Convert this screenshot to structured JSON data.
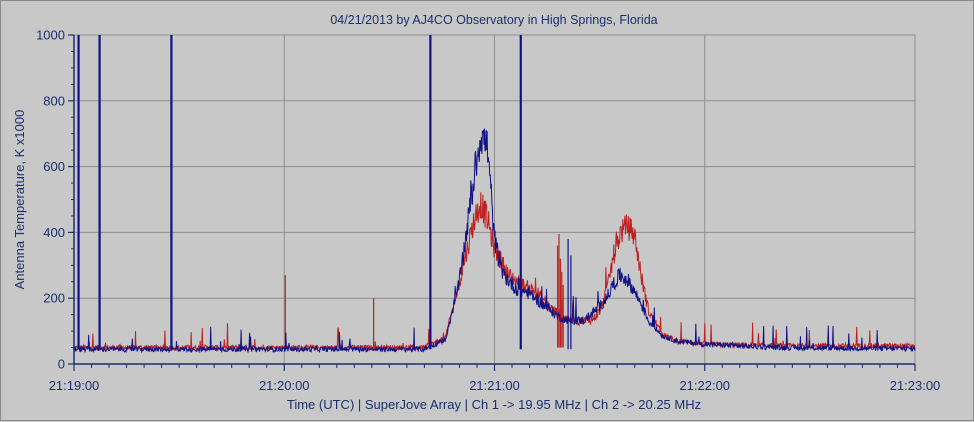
{
  "chart_data": {
    "type": "line",
    "title": "04/21/2013  by  AJ4CO Observatory  in  High Springs, Florida",
    "xlabel": "Time (UTC)  |  SuperJove Array  |  Ch 1 -> 19.95 MHz  |  Ch 2 -> 20.25 MHz",
    "ylabel": "Antenna Temperature, K x1000",
    "xlim": [
      0,
      240
    ],
    "ylim": [
      0,
      1000
    ],
    "x_tick_values": [
      0,
      60,
      120,
      180,
      240
    ],
    "x_tick_labels": [
      "21:19:00",
      "21:20:00",
      "21:21:00",
      "21:22:00",
      "21:23:00"
    ],
    "y_tick_values": [
      0,
      200,
      400,
      600,
      800,
      1000
    ],
    "y_tick_labels": [
      "0",
      "200",
      "400",
      "600",
      "800",
      "1000"
    ],
    "grid": true,
    "colors": {
      "background": "#c8c8c8",
      "plot_bg": "#c8c8c8",
      "grid": "#8e8e8e",
      "axis": "#1a2f6e",
      "text": "#1a2f6e",
      "ch1": "#101088",
      "ch2": "#c02020"
    },
    "series": [
      {
        "name": "Ch 1 -> 19.95 MHz",
        "color": "#101088",
        "baseline": 45,
        "x": [
          0,
          100,
          106,
          110,
          114,
          116,
          118,
          119,
          120,
          122,
          126,
          130,
          134,
          138,
          142,
          146,
          150,
          152,
          154,
          156,
          158,
          160,
          162,
          164,
          168,
          172,
          180,
          190,
          200,
          220,
          240
        ],
        "values": [
          45,
          45,
          75,
          250,
          550,
          700,
          660,
          520,
          380,
          280,
          230,
          215,
          180,
          145,
          130,
          135,
          175,
          200,
          245,
          270,
          255,
          220,
          180,
          130,
          85,
          70,
          60,
          55,
          50,
          48,
          47
        ],
        "spikes": [
          {
            "x": 1.3,
            "value": 1000
          },
          {
            "x": 7.3,
            "value": 1000
          },
          {
            "x": 27.8,
            "value": 1000
          },
          {
            "x": 101.7,
            "value": 1000
          },
          {
            "x": 127.5,
            "value": 1000
          },
          {
            "x": 141.0,
            "value": 380
          },
          {
            "x": 141.8,
            "value": 330
          },
          {
            "x": 141.8,
            "value": 330
          },
          {
            "x": 141.8,
            "value": 330
          },
          {
            "x": 141.8,
            "value": 330
          },
          {
            "x": 141.8,
            "value": 330
          },
          {
            "x": 141.8,
            "value": 330
          },
          {
            "x": 141.8,
            "value": 330
          },
          {
            "x": 141.8,
            "value": 330
          },
          {
            "x": 141.8,
            "value": 330
          },
          {
            "x": 141.8,
            "value": 330
          },
          {
            "x": 141.8,
            "value": 330
          },
          {
            "x": 141.8,
            "value": 330
          },
          {
            "x": 141.8,
            "value": 330
          },
          {
            "x": 141.8,
            "value": 330
          },
          {
            "x": 141.8,
            "value": 330
          },
          {
            "x": 141.8,
            "value": 330
          },
          {
            "x": 141.8,
            "value": 330
          },
          {
            "x": 141.8,
            "value": 330
          },
          {
            "x": 141.8,
            "value": 330
          },
          {
            "x": 141.8,
            "value": 330
          },
          {
            "x": 141.8,
            "value": 330
          },
          {
            "x": 141.8,
            "value": 330
          },
          {
            "x": 141.8,
            "value": 330
          },
          {
            "x": 141.8,
            "value": 330
          },
          {
            "x": 141.8,
            "value": 330
          },
          {
            "x": 141.8,
            "value": 330
          },
          {
            "x": 141.8,
            "value": 330
          },
          {
            "x": 141.8,
            "value": 330
          },
          {
            "x": 141.8,
            "value": 330
          },
          {
            "x": 141.8,
            "value": 330
          },
          {
            "x": 141.8,
            "value": 330
          },
          {
            "x": 141.8,
            "value": 330
          },
          {
            "x": 141.8,
            "value": 330
          },
          {
            "x": 141.8,
            "value": 330
          },
          {
            "x": 141.8,
            "value": 330
          },
          {
            "x": 141.8,
            "value": 330
          },
          {
            "x": 141.8,
            "value": 330
          },
          {
            "x": 141.8,
            "value": 330
          },
          {
            "x": 141.8,
            "value": 330
          },
          {
            "x": 141.8,
            "value": 330
          },
          {
            "x": 141.8,
            "value": 330
          },
          {
            "x": 141.8,
            "value": 330
          },
          {
            "x": 141.8,
            "value": 330
          },
          {
            "x": 141.8,
            "value": 330
          },
          {
            "x": 141.8,
            "value": 330
          },
          {
            "x": 141.8,
            "value": 330
          },
          {
            "x": 141.8,
            "value": 330
          },
          {
            "x": 141.8,
            "value": 330
          },
          {
            "x": 141.8,
            "value": 330
          },
          {
            "x": 141.8,
            "value": 330
          },
          {
            "x": 141.8,
            "value": 330
          },
          {
            "x": 141.8,
            "value": 330
          },
          {
            "x": 141.8,
            "value": 330
          },
          {
            "x": 141.8,
            "value": 330
          },
          {
            "x": 141.8,
            "value": 330
          },
          {
            "x": 141.8,
            "value": 330
          },
          {
            "x": 141.8,
            "value": 330
          },
          {
            "x": 141.8,
            "value": 330
          },
          {
            "x": 141.8,
            "value": 330
          },
          {
            "x": 141.8,
            "value": 330
          },
          {
            "x": 141.8,
            "value": 330
          },
          {
            "x": 141.8,
            "value": 330
          },
          {
            "x": 141.8,
            "value": 330
          },
          {
            "x": 141.8,
            "value": 330
          },
          {
            "x": 141.8,
            "value": 330
          },
          {
            "x": 141.8,
            "value": 330
          }
        ]
      },
      {
        "name": "Ch 2 -> 20.25 MHz",
        "color": "#c02020",
        "baseline": 50,
        "x": [
          0,
          100,
          106,
          110,
          114,
          116,
          118,
          120,
          124,
          128,
          132,
          136,
          140,
          144,
          148,
          150,
          152,
          154,
          156,
          158,
          160,
          162,
          164,
          168,
          172,
          180,
          200,
          220,
          240
        ],
        "values": [
          50,
          50,
          80,
          250,
          430,
          490,
          440,
          350,
          270,
          240,
          220,
          170,
          140,
          130,
          135,
          160,
          220,
          330,
          400,
          420,
          390,
          260,
          160,
          90,
          70,
          60,
          55,
          55,
          55
        ],
        "spikes": [
          {
            "x": 60.3,
            "value": 270
          },
          {
            "x": 85.5,
            "value": 200
          },
          {
            "x": 138.0,
            "value": 360
          },
          {
            "x": 138.4,
            "value": 395
          },
          {
            "x": 138.8,
            "value": 320
          },
          {
            "x": 139.2,
            "value": 280
          },
          {
            "x": 139.6,
            "value": 240
          },
          {
            "x": 139.6,
            "value": 240
          },
          {
            "x": 139.6,
            "value": 240
          },
          {
            "x": 139.6,
            "value": 240
          },
          {
            "x": 139.6,
            "value": 240
          },
          {
            "x": 139.6,
            "value": 240
          },
          {
            "x": 139.6,
            "value": 240
          },
          {
            "x": 139.6,
            "value": 240
          },
          {
            "x": 139.6,
            "value": 240
          },
          {
            "x": 139.6,
            "value": 240
          },
          {
            "x": 139.6,
            "value": 240
          },
          {
            "x": 139.6,
            "value": 240
          },
          {
            "x": 139.6,
            "value": 240
          },
          {
            "x": 139.6,
            "value": 240
          },
          {
            "x": 139.6,
            "value": 240
          },
          {
            "x": 139.6,
            "value": 240
          },
          {
            "x": 139.6,
            "value": 240
          },
          {
            "x": 139.6,
            "value": 240
          },
          {
            "x": 139.6,
            "value": 240
          },
          {
            "x": 139.6,
            "value": 240
          },
          {
            "x": 139.6,
            "value": 240
          },
          {
            "x": 139.6,
            "value": 240
          },
          {
            "x": 139.6,
            "value": 240
          },
          {
            "x": 139.6,
            "value": 240
          },
          {
            "x": 139.6,
            "value": 240
          },
          {
            "x": 139.6,
            "value": 240
          },
          {
            "x": 139.6,
            "value": 240
          },
          {
            "x": 139.6,
            "value": 240
          },
          {
            "x": 139.6,
            "value": 240
          },
          {
            "x": 139.6,
            "value": 240
          },
          {
            "x": 139.6,
            "value": 240
          },
          {
            "x": 139.6,
            "value": 240
          },
          {
            "x": 139.6,
            "value": 240
          },
          {
            "x": 139.6,
            "value": 240
          },
          {
            "x": 139.6,
            "value": 240
          },
          {
            "x": 139.6,
            "value": 240
          },
          {
            "x": 139.6,
            "value": 240
          },
          {
            "x": 139.6,
            "value": 240
          },
          {
            "x": 139.6,
            "value": 240
          },
          {
            "x": 139.6,
            "value": 240
          },
          {
            "x": 139.6,
            "value": 240
          },
          {
            "x": 139.6,
            "value": 240
          },
          {
            "x": 139.6,
            "value": 240
          },
          {
            "x": 139.6,
            "value": 240
          },
          {
            "x": 139.6,
            "value": 240
          },
          {
            "x": 139.6,
            "value": 240
          },
          {
            "x": 139.6,
            "value": 240
          },
          {
            "x": 139.6,
            "value": 240
          },
          {
            "x": 139.6,
            "value": 240
          },
          {
            "x": 139.6,
            "value": 240
          },
          {
            "x": 139.6,
            "value": 240
          },
          {
            "x": 139.6,
            "value": 240
          },
          {
            "x": 139.6,
            "value": 240
          },
          {
            "x": 139.6,
            "value": 240
          },
          {
            "x": 139.6,
            "value": 240
          },
          {
            "x": 139.6,
            "value": 240
          },
          {
            "x": 139.6,
            "value": 240
          },
          {
            "x": 139.6,
            "value": 240
          },
          {
            "x": 139.6,
            "value": 240
          },
          {
            "x": 139.6,
            "value": 240
          },
          {
            "x": 139.6,
            "value": 240
          },
          {
            "x": 139.6,
            "value": 240
          },
          {
            "x": 139.6,
            "value": 240
          },
          {
            "x": 139.6,
            "value": 240
          },
          {
            "x": 139.6,
            "value": 240
          }
        ]
      }
    ]
  }
}
